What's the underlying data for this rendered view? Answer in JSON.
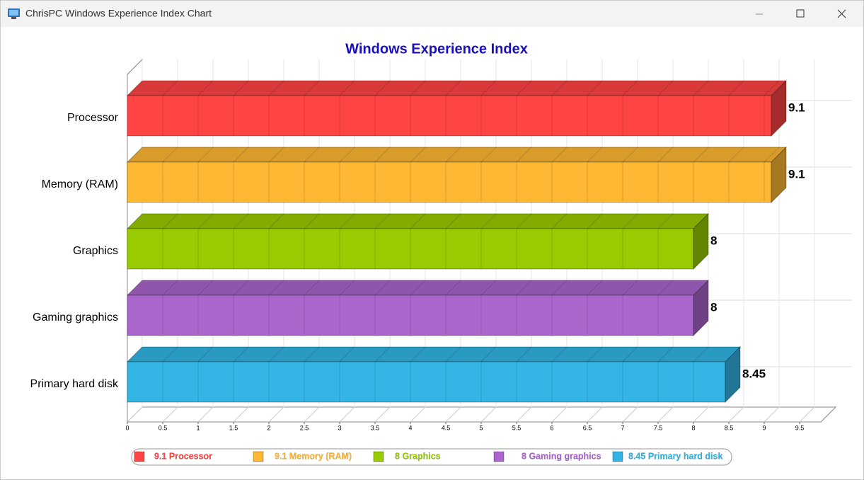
{
  "window": {
    "title": "ChrisPC Windows Experience Index Chart"
  },
  "chart_data": {
    "type": "bar",
    "orientation": "horizontal",
    "title": "Windows Experience Index",
    "categories": [
      "Processor",
      "Memory (RAM)",
      "Graphics",
      "Gaming graphics",
      "Primary hard disk"
    ],
    "values": [
      9.1,
      9.1,
      8,
      8,
      8.45
    ],
    "colors": [
      "#ff4444",
      "#ffb833",
      "#99cc00",
      "#aa66cc",
      "#33b5e5"
    ],
    "xlim": [
      0,
      9.8
    ],
    "xticks": [
      0,
      0.5,
      1,
      1.5,
      2,
      2.5,
      3,
      3.5,
      4,
      4.5,
      5,
      5.5,
      6,
      6.5,
      7,
      7.5,
      8,
      8.5,
      9,
      9.5
    ],
    "grid": true,
    "legend": "bottom"
  }
}
